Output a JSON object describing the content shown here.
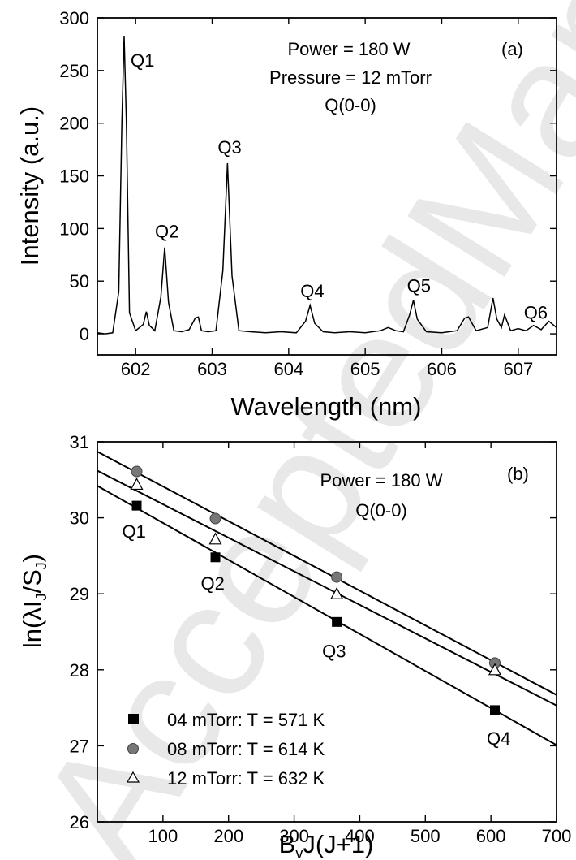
{
  "watermark": "AcceptedManuscript",
  "chart_data": [
    {
      "type": "line",
      "panel_label": "(a)",
      "xlabel": "Wavelength (nm)",
      "ylabel": "Intensity (a.u.)",
      "xlim": [
        601.5,
        607.5
      ],
      "ylim": [
        -20,
        300
      ],
      "xticks": [
        602,
        603,
        604,
        605,
        606,
        607
      ],
      "yticks": [
        0,
        50,
        100,
        150,
        200,
        250,
        300
      ],
      "annotations": [
        "Power = 180 W",
        "Pressure = 12 mTorr",
        "Q(0-0)"
      ],
      "peaks": [
        {
          "label": "Q1",
          "x": 601.85,
          "y": 283
        },
        {
          "label": "Q2",
          "x": 602.38,
          "y": 82
        },
        {
          "label": "Q3",
          "x": 603.2,
          "y": 162
        },
        {
          "label": "Q4",
          "x": 604.28,
          "y": 27
        },
        {
          "label": "Q5",
          "x": 605.63,
          "y": 32
        },
        {
          "label": "Q6",
          "x": 607.2,
          "y": 8
        }
      ],
      "series": [
        {
          "x": [
            601.5,
            601.6,
            601.7,
            601.78,
            601.82,
            601.85,
            601.88,
            601.92,
            602.0,
            602.1,
            602.14,
            602.18,
            602.25,
            602.33,
            602.38,
            602.43,
            602.5,
            602.6,
            602.7,
            602.78,
            602.82,
            602.86,
            602.95,
            603.05,
            603.14,
            603.2,
            603.26,
            603.35,
            603.5,
            603.7,
            603.9,
            604.1,
            604.22,
            604.28,
            604.34,
            604.45,
            604.6,
            604.8,
            605.0,
            605.2,
            605.3,
            605.4,
            605.5,
            605.58,
            605.63,
            605.68,
            605.8,
            606.0,
            606.2,
            606.3,
            606.35,
            606.45,
            606.6,
            606.67,
            606.72,
            606.78,
            606.82,
            606.9,
            607.0,
            607.1,
            607.2,
            607.3,
            607.4,
            607.5
          ],
          "y": [
            1,
            0,
            1,
            40,
            200,
            283,
            200,
            20,
            3,
            9,
            21,
            8,
            3,
            35,
            82,
            30,
            3,
            2,
            4,
            15,
            16,
            3,
            2,
            3,
            60,
            162,
            55,
            3,
            2,
            1,
            2,
            1,
            12,
            27,
            10,
            2,
            1,
            2,
            1,
            3,
            6,
            3,
            2,
            18,
            32,
            14,
            2,
            1,
            3,
            15,
            16,
            3,
            6,
            34,
            14,
            6,
            18,
            3,
            5,
            3,
            8,
            4,
            12,
            6
          ]
        }
      ]
    },
    {
      "type": "scatter",
      "panel_label": "(b)",
      "xlabel": "B",
      "xlabel_sub": "v",
      "xlabel_rest": "J(J+1)",
      "ylabel": "ln(λI",
      "ylabel_sub1": "J",
      "ylabel_mid": "/S",
      "ylabel_sub2": "J",
      "ylabel_end": ")",
      "xlim": [
        0,
        700
      ],
      "ylim": [
        26,
        31
      ],
      "xticks": [
        100,
        200,
        300,
        400,
        500,
        600,
        700
      ],
      "yticks": [
        26,
        27,
        28,
        29,
        30,
        31
      ],
      "annotations": [
        "Power = 180 W",
        "Q(0-0)"
      ],
      "point_labels": [
        {
          "label": "Q1",
          "x": 60,
          "y": 29.78
        },
        {
          "label": "Q2",
          "x": 180,
          "y": 29.1
        },
        {
          "label": "Q3",
          "x": 365,
          "y": 28.25
        },
        {
          "label": "Q4",
          "x": 606,
          "y": 27.08
        }
      ],
      "legend_position": "bottom-left",
      "series": [
        {
          "name": "04 mTorr: T = 571 K",
          "marker": "square",
          "x": [
            60,
            180,
            365,
            606
          ],
          "y": [
            30.16,
            29.48,
            28.63,
            27.47
          ],
          "fit": [
            [
              0,
              30.42
            ],
            [
              700,
              27.01
            ]
          ]
        },
        {
          "name": "08 mTorr: T = 614 K",
          "marker": "circle",
          "x": [
            60,
            180,
            365,
            606
          ],
          "y": [
            30.61,
            29.99,
            29.22,
            28.09
          ],
          "fit": [
            [
              0,
              30.87
            ],
            [
              700,
              27.67
            ]
          ]
        },
        {
          "name": "12 mTorr: T = 632 K",
          "marker": "triangle",
          "x": [
            60,
            180,
            365,
            606
          ],
          "y": [
            30.44,
            29.72,
            29.0,
            28.0
          ],
          "fit": [
            [
              0,
              30.62
            ],
            [
              700,
              27.53
            ]
          ]
        }
      ]
    }
  ]
}
